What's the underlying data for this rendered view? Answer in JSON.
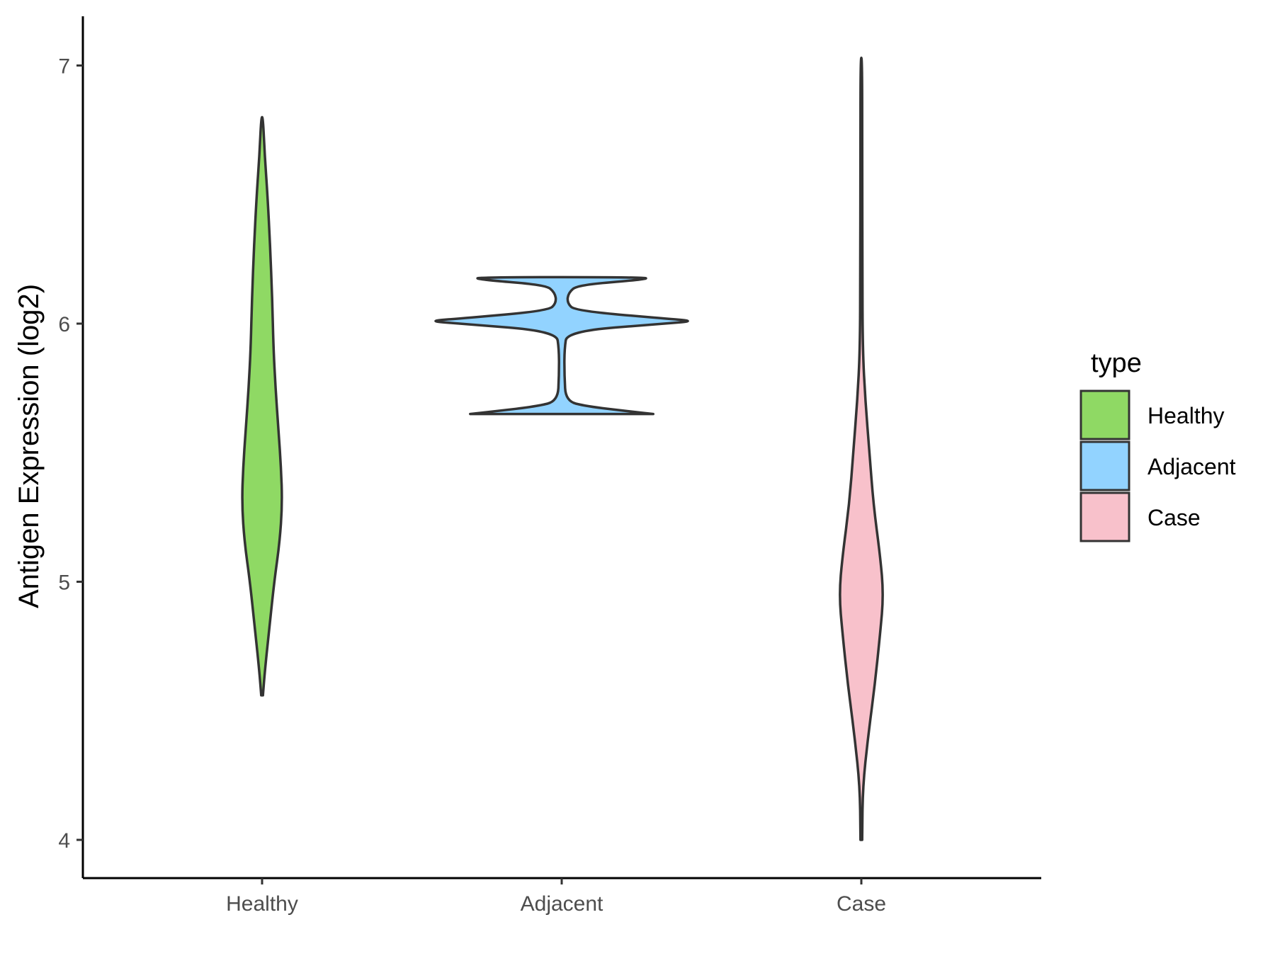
{
  "chart_data": {
    "type": "violin",
    "title": "",
    "xlabel": "",
    "ylabel": "Antigen Expression (log2)",
    "ylim": [
      3.85,
      7.2
    ],
    "y_ticks": [
      4,
      5,
      6,
      7
    ],
    "categories": [
      "Healthy",
      "Adjacent",
      "Case"
    ],
    "series": [
      {
        "name": "Healthy",
        "color": "#8fd964",
        "min": 4.56,
        "max": 6.8,
        "density": [
          [
            4.56,
            0.0
          ],
          [
            4.65,
            0.02
          ],
          [
            4.8,
            0.05
          ],
          [
            5.0,
            0.09
          ],
          [
            5.15,
            0.13
          ],
          [
            5.3,
            0.15
          ],
          [
            5.45,
            0.14
          ],
          [
            5.6,
            0.12
          ],
          [
            5.75,
            0.1
          ],
          [
            5.9,
            0.085
          ],
          [
            6.1,
            0.075
          ],
          [
            6.3,
            0.06
          ],
          [
            6.5,
            0.04
          ],
          [
            6.65,
            0.02
          ],
          [
            6.8,
            0.0
          ]
        ]
      },
      {
        "name": "Adjacent",
        "color": "#92d3ff",
        "min": 5.65,
        "max": 6.18,
        "density": [
          [
            5.65,
            0.68
          ],
          [
            5.66,
            0.5
          ],
          [
            5.68,
            0.18
          ],
          [
            5.7,
            0.03
          ],
          [
            5.8,
            0.02
          ],
          [
            5.9,
            0.02
          ],
          [
            5.97,
            0.04
          ],
          [
            6.0,
            0.75
          ],
          [
            6.01,
            1.0
          ],
          [
            6.02,
            0.75
          ],
          [
            6.05,
            0.1
          ],
          [
            6.08,
            0.04
          ],
          [
            6.12,
            0.05
          ],
          [
            6.15,
            0.12
          ],
          [
            6.17,
            0.6
          ],
          [
            6.18,
            0.65
          ]
        ]
      },
      {
        "name": "Case",
        "color": "#f8c1cb",
        "min": 4.0,
        "max": 7.03,
        "density": [
          [
            4.0,
            0.0
          ],
          [
            4.2,
            0.01
          ],
          [
            4.4,
            0.05
          ],
          [
            4.6,
            0.1
          ],
          [
            4.8,
            0.14
          ],
          [
            4.95,
            0.165
          ],
          [
            5.1,
            0.14
          ],
          [
            5.3,
            0.09
          ],
          [
            5.5,
            0.06
          ],
          [
            5.7,
            0.03
          ],
          [
            5.9,
            0.01
          ],
          [
            6.2,
            0.008
          ],
          [
            6.6,
            0.006
          ],
          [
            7.03,
            0.005
          ]
        ]
      }
    ],
    "legend": {
      "title": "type",
      "placement": "right",
      "entries": [
        "Healthy",
        "Adjacent",
        "Case"
      ]
    }
  }
}
